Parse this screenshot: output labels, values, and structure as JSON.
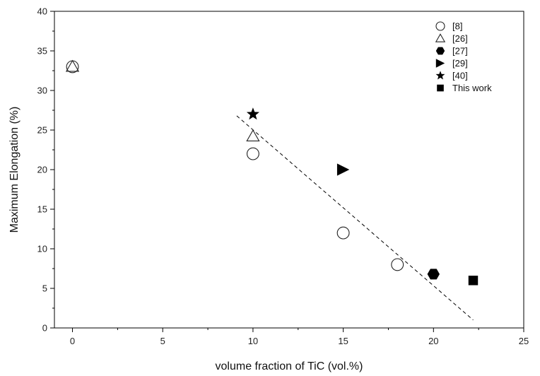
{
  "chart_data": {
    "type": "scatter",
    "xlabel": "volume fraction of TiC (vol.%)",
    "ylabel": "Maximum Elongation (%)",
    "xlim": [
      -1,
      25
    ],
    "ylim": [
      0,
      40
    ],
    "x_ticks": [
      0,
      5,
      10,
      15,
      20,
      25
    ],
    "y_ticks": [
      0,
      5,
      10,
      15,
      20,
      25,
      30,
      35,
      40
    ],
    "grid": false,
    "legend_position": "top-right",
    "series": [
      {
        "name": "[8]",
        "marker": "circle-open",
        "points": [
          [
            0,
            33
          ],
          [
            10,
            22
          ],
          [
            15,
            12
          ],
          [
            18,
            8
          ]
        ]
      },
      {
        "name": "[26]",
        "marker": "triangle-open",
        "points": [
          [
            0,
            33
          ],
          [
            10,
            24.2
          ]
        ]
      },
      {
        "name": "[27]",
        "marker": "hexagon-filled",
        "points": [
          [
            20,
            6.8
          ]
        ]
      },
      {
        "name": "[29]",
        "marker": "triangle-right-filled",
        "points": [
          [
            15,
            20
          ]
        ]
      },
      {
        "name": "[40]",
        "marker": "star-filled",
        "points": [
          [
            10,
            27
          ]
        ]
      },
      {
        "name": "This work",
        "marker": "square-filled",
        "points": [
          [
            22.2,
            6
          ]
        ]
      }
    ],
    "trendline": {
      "style": "dashed",
      "points": [
        [
          9.1,
          26.8
        ],
        [
          22.2,
          1
        ]
      ]
    }
  }
}
